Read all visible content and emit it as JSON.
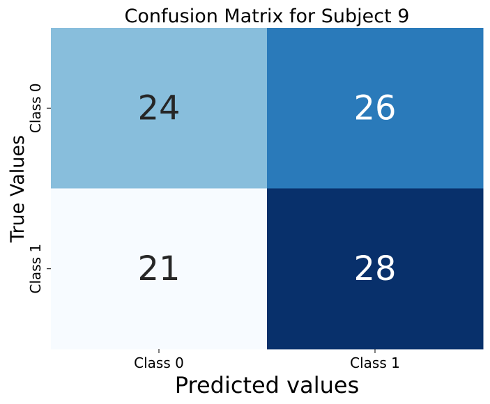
{
  "chart_data": {
    "type": "heatmap",
    "title": "Confusion Matrix for Subject 9",
    "xlabel": "Predicted values",
    "ylabel": "True Values",
    "x_categories": [
      "Class 0",
      "Class 1"
    ],
    "y_categories": [
      "Class 0",
      "Class 1"
    ],
    "matrix": [
      [
        24,
        26
      ],
      [
        21,
        28
      ]
    ],
    "colormap": "Blues",
    "value_range": [
      21,
      28
    ],
    "colorbar": false,
    "grid": false
  }
}
